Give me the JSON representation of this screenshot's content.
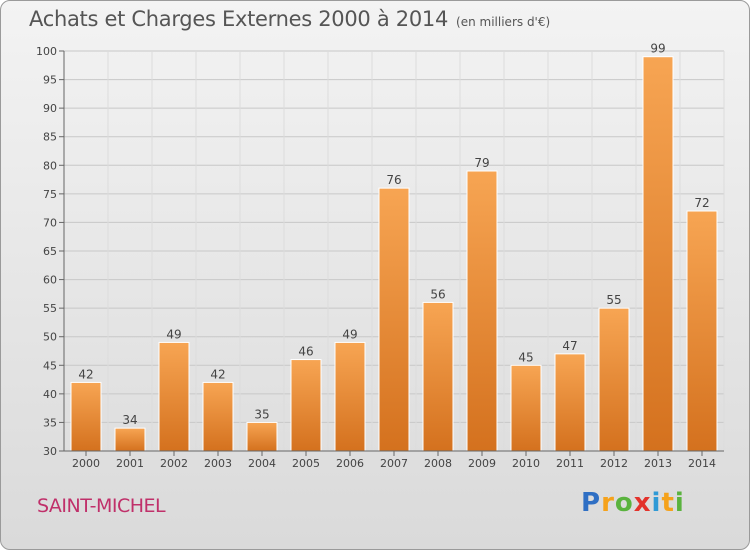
{
  "header": {
    "title": "Achats et Charges Externes 2000 à 2014",
    "unit": "(en milliers d'€)"
  },
  "footer": {
    "town": "SAINT-MICHEL"
  },
  "logo": {
    "text": "Proxiti",
    "letters": [
      {
        "char": "P",
        "color": "#2f6fc4"
      },
      {
        "char": "r",
        "color": "#f5a21b"
      },
      {
        "char": "o",
        "color": "#5ab33e"
      },
      {
        "char": "x",
        "color": "#e3322b"
      },
      {
        "char": "i",
        "color": "#2f9ad6"
      },
      {
        "char": "t",
        "color": "#f5a21b"
      },
      {
        "char": "i",
        "color": "#5ab33e"
      }
    ]
  },
  "chart_data": {
    "type": "bar",
    "title": "Achats et Charges Externes 2000 à 2014",
    "subtitle": "(en milliers d'€)",
    "categories": [
      "2000",
      "2001",
      "2002",
      "2003",
      "2004",
      "2005",
      "2006",
      "2007",
      "2008",
      "2009",
      "2010",
      "2011",
      "2012",
      "2013",
      "2014"
    ],
    "values": [
      42,
      34,
      49,
      42,
      35,
      46,
      49,
      76,
      56,
      79,
      45,
      47,
      55,
      99,
      72
    ],
    "ylim": [
      30,
      100
    ],
    "yticks": [
      30,
      35,
      40,
      45,
      50,
      55,
      60,
      65,
      70,
      75,
      80,
      85,
      90,
      95,
      100
    ],
    "grid": true,
    "bar_color_light": "#f7a553",
    "bar_color_dark": "#d4711e"
  }
}
